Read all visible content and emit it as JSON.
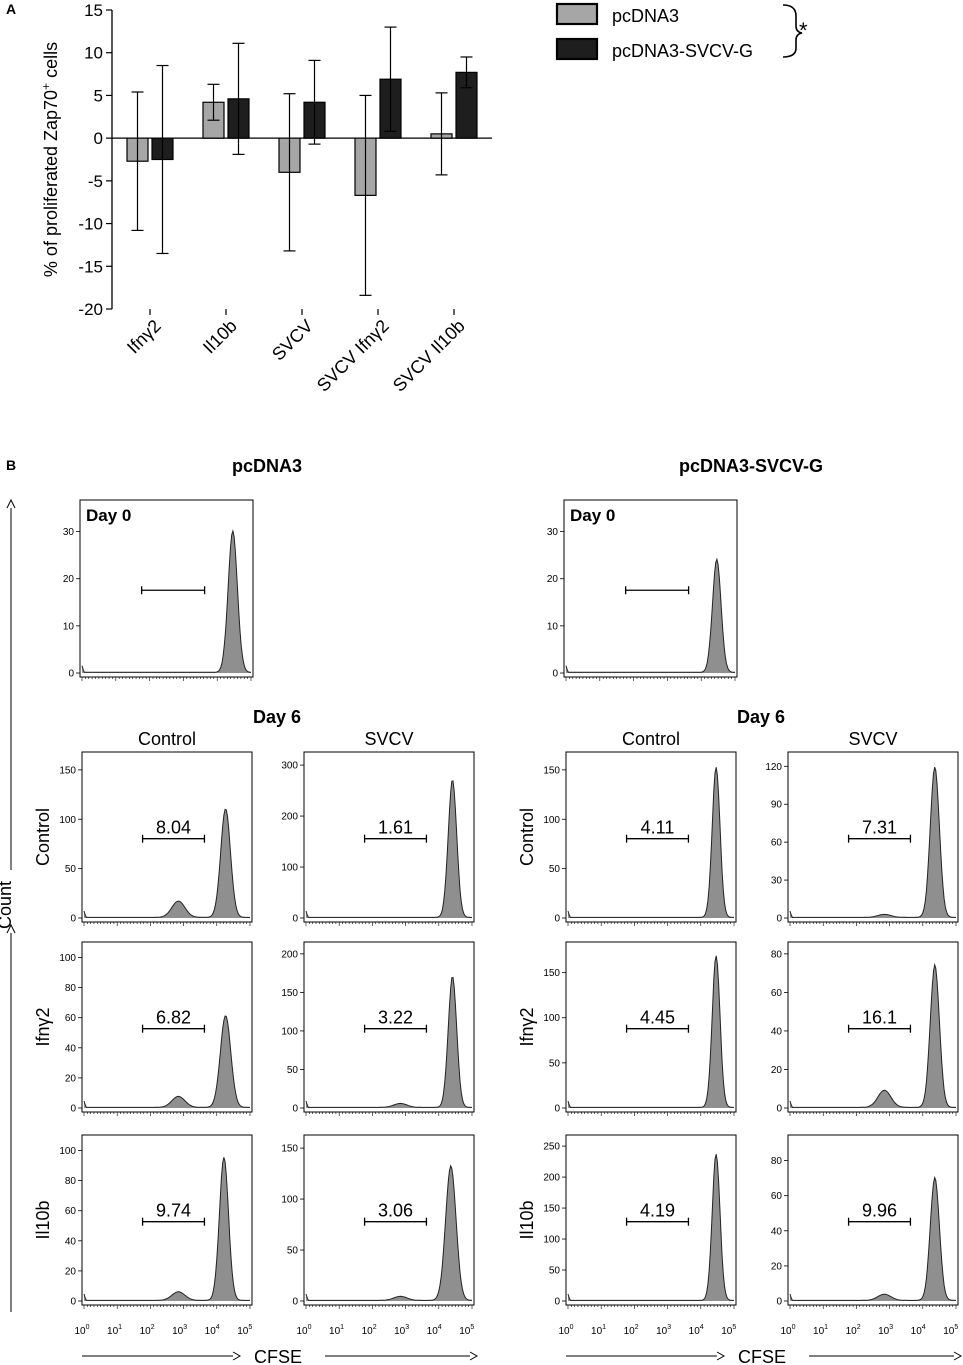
{
  "chart_data": [
    {
      "panel": "A",
      "type": "bar",
      "ylabel_pre": "% of proliferated Zap70",
      "ylabel_sup": "+",
      "ylabel_post": " cells",
      "ylim": [
        -20,
        15
      ],
      "yticks": [
        15,
        10,
        5,
        0,
        -5,
        -10,
        -15,
        -20
      ],
      "categories": [
        "Ifnγ2",
        "Il10b",
        "SVCV",
        "SVCV Ifnγ2",
        "SVCV Il10b"
      ],
      "series": [
        {
          "name": "pcDNA3",
          "color": "#a6a6a6",
          "values": [
            -2.7,
            4.2,
            -4.0,
            -6.7,
            0.5
          ],
          "errors": [
            8.1,
            2.1,
            9.2,
            11.7,
            4.8
          ]
        },
        {
          "name": "pcDNA3-SVCV-G",
          "color": "#1e1e1e",
          "values": [
            -2.5,
            4.6,
            4.2,
            6.9,
            7.7
          ],
          "errors": [
            11.0,
            6.5,
            4.9,
            6.1,
            1.8
          ]
        }
      ],
      "significance": "*"
    },
    {
      "panel": "B",
      "type": "histogram",
      "groups": [
        {
          "title": "pcDNA3",
          "day0": {
            "label": "Day 0",
            "yticks": [
              0,
              10,
              20,
              30
            ],
            "ymax": 35,
            "peak": 30,
            "peak_log": 4.55,
            "width": 0.14
          },
          "grid": [
            {
              "row": "Control",
              "col": "Control",
              "yticks": [
                0,
                50,
                100,
                150
              ],
              "ymax": 160,
              "peak": 110,
              "peak_log": 4.35,
              "width": 0.15,
              "small": 0.15,
              "pct": "8.04"
            },
            {
              "row": "Control",
              "col": "SVCV",
              "yticks": [
                0,
                100,
                200,
                300
              ],
              "ymax": 310,
              "peak": 270,
              "peak_log": 4.5,
              "width": 0.13,
              "small": 0.0,
              "pct": "1.61"
            },
            {
              "row": "Ifnγ2",
              "col": "Control",
              "yticks": [
                0,
                20,
                40,
                60,
                80,
                100
              ],
              "ymax": 105,
              "peak": 61,
              "peak_log": 4.35,
              "width": 0.16,
              "small": 0.12,
              "pct": "6.82"
            },
            {
              "row": "Ifnγ2",
              "col": "SVCV",
              "yticks": [
                0,
                50,
                100,
                150,
                200
              ],
              "ymax": 205,
              "peak": 170,
              "peak_log": 4.5,
              "width": 0.13,
              "small": 0.03,
              "pct": "3.22"
            },
            {
              "row": "Il10b",
              "col": "Control",
              "yticks": [
                0,
                20,
                40,
                60,
                80,
                100
              ],
              "ymax": 105,
              "peak": 95,
              "peak_log": 4.3,
              "width": 0.14,
              "small": 0.06,
              "pct": "9.74"
            },
            {
              "row": "Il10b",
              "col": "SVCV",
              "yticks": [
                0,
                50,
                100,
                150
              ],
              "ymax": 155,
              "peak": 132,
              "peak_log": 4.45,
              "width": 0.16,
              "small": 0.03,
              "pct": "3.06"
            }
          ]
        },
        {
          "title": "pcDNA3-SVCV-G",
          "day0": {
            "label": "Day 0",
            "yticks": [
              0,
              10,
              20,
              30
            ],
            "ymax": 35,
            "peak": 24,
            "peak_log": 4.55,
            "width": 0.13
          },
          "grid": [
            {
              "row": "Control",
              "col": "Control",
              "yticks": [
                0,
                50,
                100,
                150
              ],
              "ymax": 160,
              "peak": 152,
              "peak_log": 4.55,
              "width": 0.12,
              "small": 0.0,
              "pct": "4.11"
            },
            {
              "row": "Control",
              "col": "SVCV",
              "yticks": [
                0,
                30,
                60,
                90,
                120
              ],
              "ymax": 125,
              "peak": 119,
              "peak_log": 4.45,
              "width": 0.14,
              "small": 0.02,
              "pct": "7.31"
            },
            {
              "row": "Ifnγ2",
              "col": "Control",
              "yticks": [
                0,
                50,
                100,
                150
              ],
              "ymax": 175,
              "peak": 168,
              "peak_log": 4.55,
              "width": 0.12,
              "small": 0.0,
              "pct": "4.45"
            },
            {
              "row": "Ifnγ2",
              "col": "SVCV",
              "yticks": [
                0,
                20,
                40,
                60,
                80
              ],
              "ymax": 82,
              "peak": 74,
              "peak_log": 4.45,
              "width": 0.14,
              "small": 0.12,
              "pct": "16.1"
            },
            {
              "row": "Il10b",
              "col": "Control",
              "yticks": [
                0,
                50,
                100,
                150,
                200,
                250
              ],
              "ymax": 255,
              "peak": 236,
              "peak_log": 4.55,
              "width": 0.12,
              "small": 0.0,
              "pct": "4.19"
            },
            {
              "row": "Il10b",
              "col": "SVCV",
              "yticks": [
                0,
                20,
                40,
                60,
                80
              ],
              "ymax": 90,
              "peak": 70,
              "peak_log": 4.45,
              "width": 0.14,
              "small": 0.05,
              "pct": "9.96"
            }
          ]
        }
      ],
      "day6_label": "Day 6",
      "col_labels": [
        "Control",
        "SVCV"
      ],
      "row_labels": [
        "Control",
        "Ifnγ2",
        "Il10b"
      ],
      "xlabel": "CFSE",
      "ylabel": "Count",
      "xtick_exponents": [
        "0",
        "1",
        "2",
        "3",
        "4",
        "5"
      ],
      "xtick_base": "10"
    }
  ],
  "labels": {
    "panel_a": "A",
    "panel_b": "B"
  }
}
